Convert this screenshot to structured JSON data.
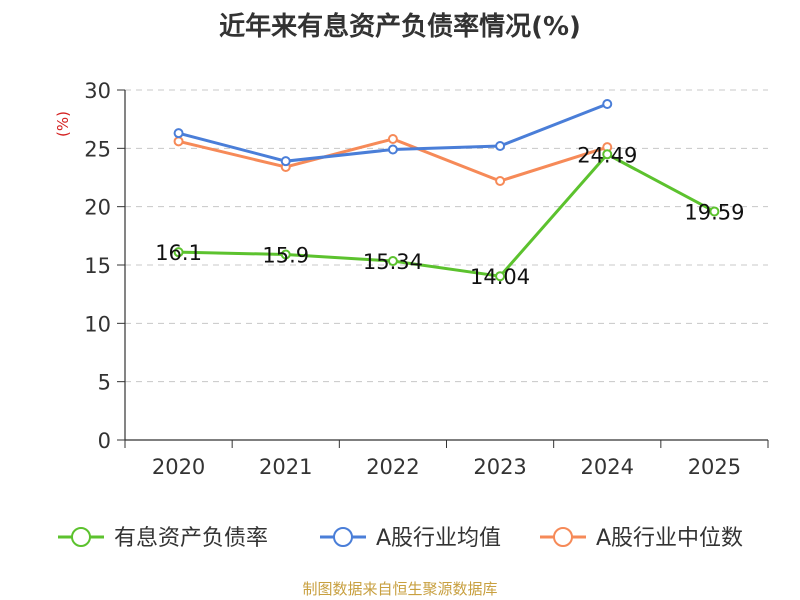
{
  "chart_data": {
    "type": "line",
    "title": "近年来有息资产负债率情况(%)",
    "ylabel": "(%)",
    "categories": [
      "2020",
      "2021",
      "2022",
      "2023",
      "2024",
      "2025"
    ],
    "ylim": [
      0,
      30
    ],
    "yticks": [
      0,
      5,
      10,
      15,
      20,
      25,
      30
    ],
    "grid": true,
    "legend_position": "bottom",
    "series": [
      {
        "name": "有息资产负债率",
        "color": "#5cc22e",
        "values": [
          16.1,
          15.9,
          15.34,
          14.04,
          24.49,
          19.59
        ],
        "labels": [
          "16.1",
          "15.9",
          "15.34",
          "14.04",
          "24.49",
          "19.59"
        ]
      },
      {
        "name": "A股行业均值",
        "color": "#4a7ed8",
        "values": [
          26.3,
          23.9,
          24.9,
          25.2,
          28.8,
          null
        ]
      },
      {
        "name": "A股行业中位数",
        "color": "#f68a58",
        "values": [
          25.6,
          23.4,
          25.8,
          22.2,
          25.1,
          null
        ]
      }
    ]
  },
  "footer": {
    "source": "制图数据来自恒生聚源数据库"
  }
}
